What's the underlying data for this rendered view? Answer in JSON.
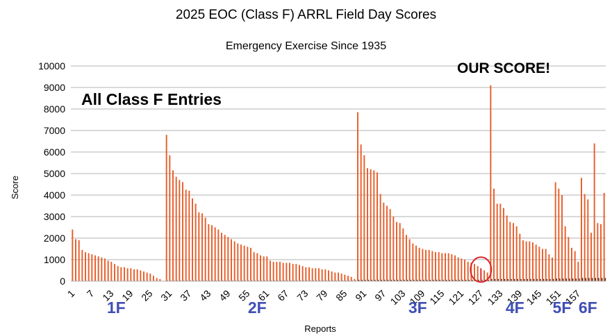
{
  "chart_data": {
    "type": "bar",
    "title": "2025 EOC (Class F) ARRL Field Day Scores",
    "subtitle": "Emergency Exercise Since 1935",
    "xlabel": "Reports",
    "ylabel": "Score",
    "ylim": [
      0,
      10000
    ],
    "yticks": [
      0,
      1000,
      2000,
      3000,
      4000,
      5000,
      6000,
      7000,
      8000,
      9000,
      10000
    ],
    "x_tick_labels": [
      1,
      7,
      13,
      19,
      25,
      31,
      37,
      43,
      49,
      55,
      61,
      67,
      73,
      79,
      85,
      91,
      97,
      103,
      109,
      115,
      121,
      127,
      133,
      139,
      145,
      151,
      157
    ],
    "grid": true,
    "legend": "none",
    "bar_color": "#e8602c",
    "highlight_report": 127,
    "highlight_color": "#d9262b",
    "series": [
      {
        "values": [
          2400,
          1950,
          1900,
          1450,
          1350,
          1300,
          1250,
          1200,
          1150,
          1100,
          1050,
          950,
          900,
          800,
          700,
          650,
          650,
          600,
          600,
          550,
          550,
          500,
          450,
          400,
          350,
          250,
          150,
          100,
          0,
          6800,
          5850,
          5150,
          4850,
          4700,
          4600,
          4250,
          4200,
          3850,
          3600,
          3200,
          3150,
          2950,
          2650,
          2600,
          2500,
          2400,
          2250,
          2150,
          2050,
          1950,
          1850,
          1750,
          1700,
          1650,
          1600,
          1550,
          1350,
          1300,
          1200,
          1150,
          1150,
          950,
          900,
          900,
          900,
          850,
          850,
          850,
          800,
          800,
          750,
          700,
          650,
          650,
          600,
          600,
          600,
          550,
          550,
          500,
          450,
          400,
          400,
          350,
          300,
          250,
          200,
          100,
          7850,
          6350,
          5850,
          5250,
          5200,
          5150,
          5050,
          4050,
          3650,
          3500,
          3350,
          3000,
          2750,
          2700,
          2450,
          2150,
          1950,
          1750,
          1650,
          1550,
          1500,
          1450,
          1450,
          1400,
          1350,
          1350,
          1300,
          1300,
          1300,
          1250,
          1200,
          1100,
          1050,
          1000,
          900,
          850,
          800,
          700,
          600,
          500,
          400,
          9100,
          4300,
          3600,
          3600,
          3400,
          3050,
          2750,
          2700,
          2550,
          2200,
          1900,
          1850,
          1850,
          1800,
          1700,
          1600,
          1500,
          1500,
          1250,
          1100,
          4600,
          4300,
          4000,
          2550,
          2050,
          1550,
          1400,
          900,
          4800,
          4050,
          3800,
          2250,
          6400,
          2700,
          2650,
          4100
        ],
        "counts": [
          20,
          20,
          20,
          20,
          20,
          20,
          20,
          20,
          20,
          20,
          20,
          20,
          20,
          20,
          20,
          20,
          20,
          20,
          20,
          20,
          20,
          20,
          20,
          20,
          20,
          20,
          20,
          20,
          20,
          30,
          30,
          30,
          30,
          30,
          30,
          30,
          30,
          30,
          30,
          30,
          30,
          30,
          30,
          30,
          30,
          30,
          30,
          30,
          30,
          30,
          30,
          30,
          30,
          30,
          30,
          30,
          30,
          30,
          30,
          30,
          30,
          30,
          30,
          30,
          30,
          30,
          30,
          30,
          30,
          30,
          30,
          30,
          30,
          30,
          30,
          30,
          30,
          30,
          30,
          30,
          30,
          30,
          30,
          30,
          30,
          30,
          30,
          30,
          60,
          60,
          60,
          60,
          60,
          60,
          60,
          60,
          60,
          60,
          60,
          60,
          60,
          60,
          60,
          60,
          60,
          60,
          60,
          60,
          60,
          60,
          60,
          60,
          60,
          60,
          60,
          60,
          60,
          60,
          60,
          60,
          60,
          60,
          60,
          60,
          60,
          60,
          60,
          60,
          60,
          100,
          100,
          100,
          100,
          100,
          100,
          100,
          100,
          100,
          100,
          100,
          100,
          100,
          100,
          100,
          100,
          100,
          100,
          100,
          100,
          120,
          120,
          120,
          120,
          120,
          120,
          120,
          120,
          150,
          150,
          150,
          150,
          150,
          150,
          150,
          150
        ]
      }
    ],
    "annotations": {
      "all_entries": "All Class F Entries",
      "our_score": "OUR SCORE!"
    },
    "class_labels": [
      {
        "label": "1F",
        "start": 1,
        "end": 28
      },
      {
        "label": "2F",
        "start": 29,
        "end": 87
      },
      {
        "label": "3F",
        "start": 88,
        "end": 127
      },
      {
        "label": "4F",
        "start": 128,
        "end": 147
      },
      {
        "label": "5F",
        "start": 148,
        "end": 156
      },
      {
        "label": "6F",
        "start": 157,
        "end": 163
      }
    ]
  }
}
